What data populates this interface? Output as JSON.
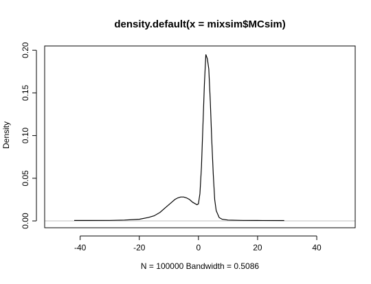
{
  "chart_data": {
    "type": "line",
    "title": "density.default(x = mixsim$MCsim)",
    "xlabel": "N = 100000   Bandwidth = 0.5086",
    "ylabel": "Density",
    "xlim": [
      -52,
      53
    ],
    "ylim": [
      -0.008,
      0.205
    ],
    "x_ticks": [
      -40,
      -20,
      0,
      20,
      40
    ],
    "x_tick_labels": [
      "-40",
      "-20",
      "0",
      "20",
      "40"
    ],
    "y_ticks": [
      0.0,
      0.05,
      0.1,
      0.15,
      0.2
    ],
    "y_tick_labels": [
      "0.00",
      "0.05",
      "0.10",
      "0.15",
      "0.20"
    ],
    "grid": false,
    "baseline": 0,
    "colors": {
      "line": "#000000",
      "baseline": "#bebebe",
      "frame": "#000000"
    },
    "series": [
      {
        "x": [
          -42,
          -30,
          -25,
          -20,
          -17,
          -15,
          -13,
          -11,
          -9,
          -8,
          -7,
          -6,
          -5,
          -4,
          -3,
          -2,
          -1,
          -0.5,
          0,
          0.5,
          1,
          1.5,
          2,
          2.5,
          3,
          3.5,
          4,
          4.5,
          5,
          5.5,
          6,
          7,
          8,
          10,
          15,
          20,
          29
        ],
        "y": [
          0.0005,
          0.0006,
          0.001,
          0.002,
          0.004,
          0.006,
          0.01,
          0.016,
          0.022,
          0.025,
          0.027,
          0.028,
          0.028,
          0.027,
          0.025,
          0.022,
          0.02,
          0.019,
          0.02,
          0.032,
          0.063,
          0.11,
          0.16,
          0.195,
          0.19,
          0.178,
          0.14,
          0.095,
          0.055,
          0.025,
          0.012,
          0.004,
          0.002,
          0.001,
          0.0006,
          0.0005,
          0.0004
        ]
      }
    ]
  }
}
